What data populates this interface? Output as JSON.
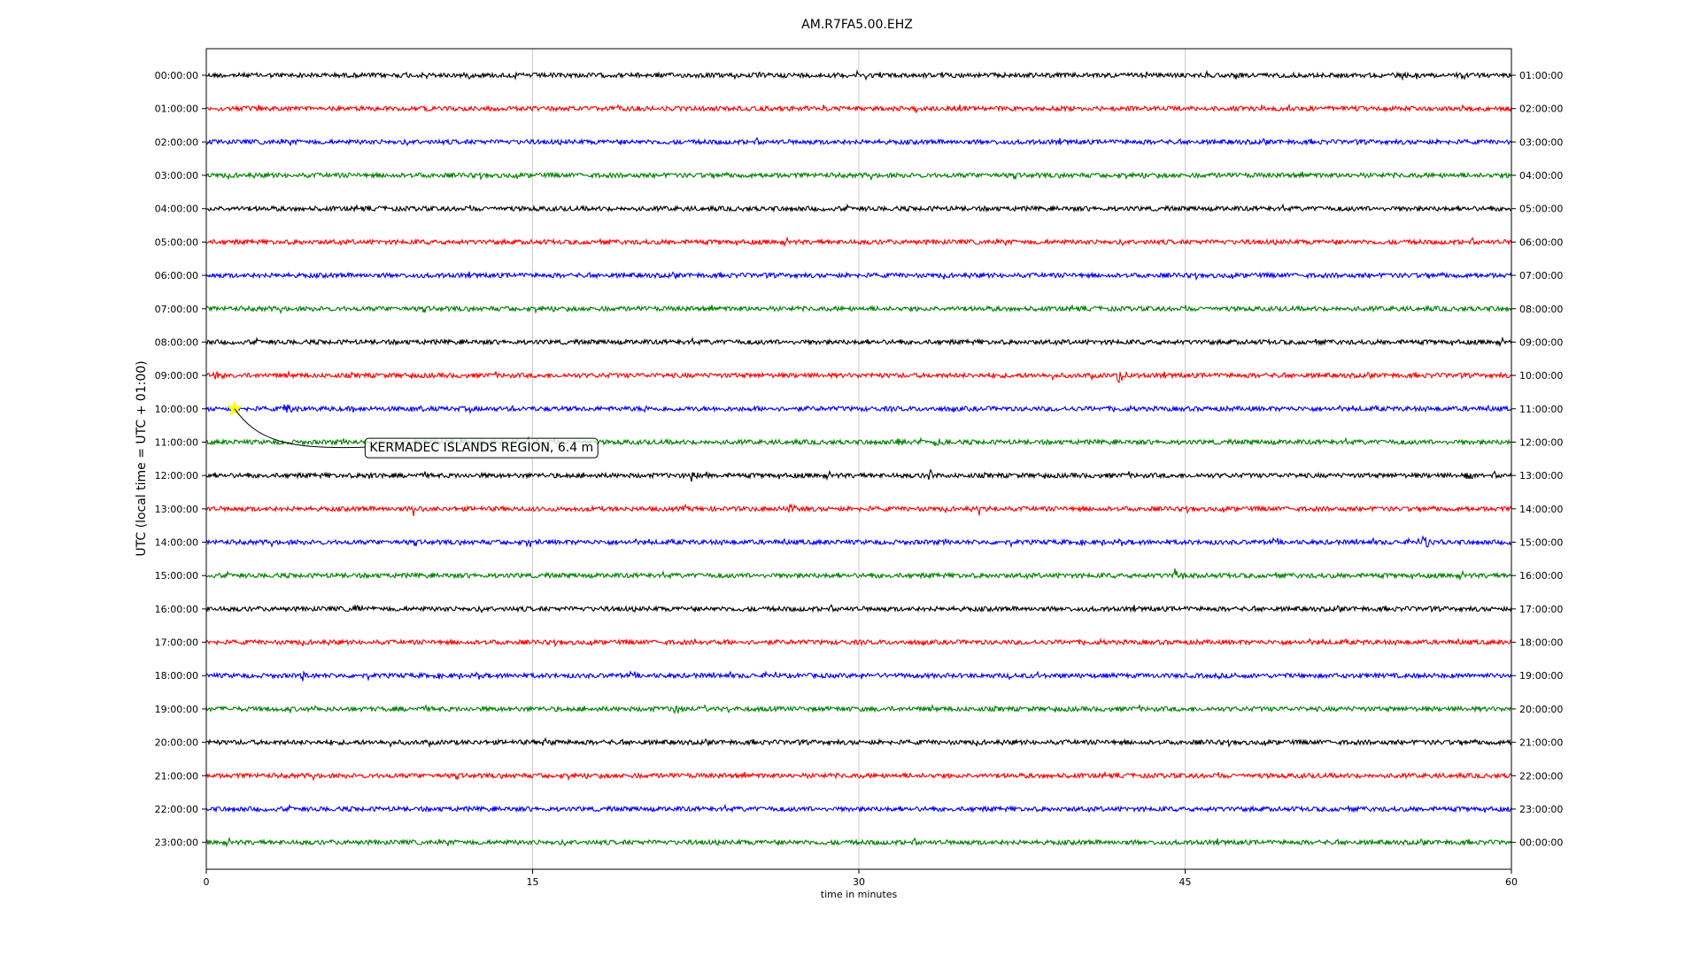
{
  "chart_data": {
    "type": "line",
    "title": "AM.R7FA5.00.EHZ",
    "xlabel": "time in minutes",
    "ylabel": "UTC (local time = UTC + 01:00)",
    "xlim": [
      0,
      60
    ],
    "x_ticks": [
      0,
      15,
      30,
      45,
      60
    ],
    "x_tick_labels": [
      "0",
      "15",
      "30",
      "45",
      "60"
    ],
    "grid": "vertical lines at 15, 30, 45",
    "colors": [
      "#000000",
      "#ff0000",
      "#0000ff",
      "#008000"
    ],
    "left_labels": [
      "00:00:00",
      "01:00:00",
      "02:00:00",
      "03:00:00",
      "04:00:00",
      "05:00:00",
      "06:00:00",
      "07:00:00",
      "08:00:00",
      "09:00:00",
      "10:00:00",
      "11:00:00",
      "12:00:00",
      "13:00:00",
      "14:00:00",
      "15:00:00",
      "16:00:00",
      "17:00:00",
      "18:00:00",
      "19:00:00",
      "20:00:00",
      "21:00:00",
      "22:00:00",
      "23:00:00"
    ],
    "right_labels": [
      "01:00:00",
      "02:00:00",
      "03:00:00",
      "04:00:00",
      "05:00:00",
      "06:00:00",
      "07:00:00",
      "08:00:00",
      "09:00:00",
      "10:00:00",
      "11:00:00",
      "12:00:00",
      "13:00:00",
      "14:00:00",
      "15:00:00",
      "16:00:00",
      "17:00:00",
      "18:00:00",
      "19:00:00",
      "20:00:00",
      "21:00:00",
      "22:00:00",
      "23:00:00",
      "00:00:00"
    ],
    "events": [
      {
        "row": 9,
        "minute": 41.9,
        "amp": 13
      },
      {
        "row": 9,
        "minute": 0.3,
        "amp": 8
      },
      {
        "row": 10,
        "minute": 3.6,
        "amp": 9
      },
      {
        "row": 11,
        "minute": 31.8,
        "amp": 7
      },
      {
        "row": 11,
        "minute": 33.5,
        "amp": 6
      },
      {
        "row": 11,
        "minute": 14.8,
        "amp": 6
      },
      {
        "row": 12,
        "minute": 33.2,
        "amp": 9
      },
      {
        "row": 12,
        "minute": 22.3,
        "amp": 6
      },
      {
        "row": 12,
        "minute": 7.4,
        "amp": 6
      },
      {
        "row": 12,
        "minute": 57.9,
        "amp": 6
      },
      {
        "row": 13,
        "minute": 9.5,
        "amp": 7
      },
      {
        "row": 13,
        "minute": 26.8,
        "amp": 9
      },
      {
        "row": 13,
        "minute": 35.5,
        "amp": 7
      },
      {
        "row": 14,
        "minute": 55.9,
        "amp": 13
      },
      {
        "row": 14,
        "minute": 14.8,
        "amp": 7
      },
      {
        "row": 15,
        "minute": 44.5,
        "amp": 11
      },
      {
        "row": 16,
        "minute": 6.8,
        "amp": 7
      },
      {
        "row": 17,
        "minute": 22.5,
        "amp": 5
      },
      {
        "row": 18,
        "minute": 4.4,
        "amp": 8
      },
      {
        "row": 19,
        "minute": 21.5,
        "amp": 7
      },
      {
        "row": 20,
        "minute": 15.5,
        "amp": 6
      }
    ],
    "marker": {
      "row": 10,
      "minute": 1.3,
      "color": "#ffff00"
    },
    "annotation": {
      "text": "KERMADEC ISLANDS REGION, 6.4 m",
      "box_minute": 7.3,
      "box_row": 11.15
    }
  }
}
